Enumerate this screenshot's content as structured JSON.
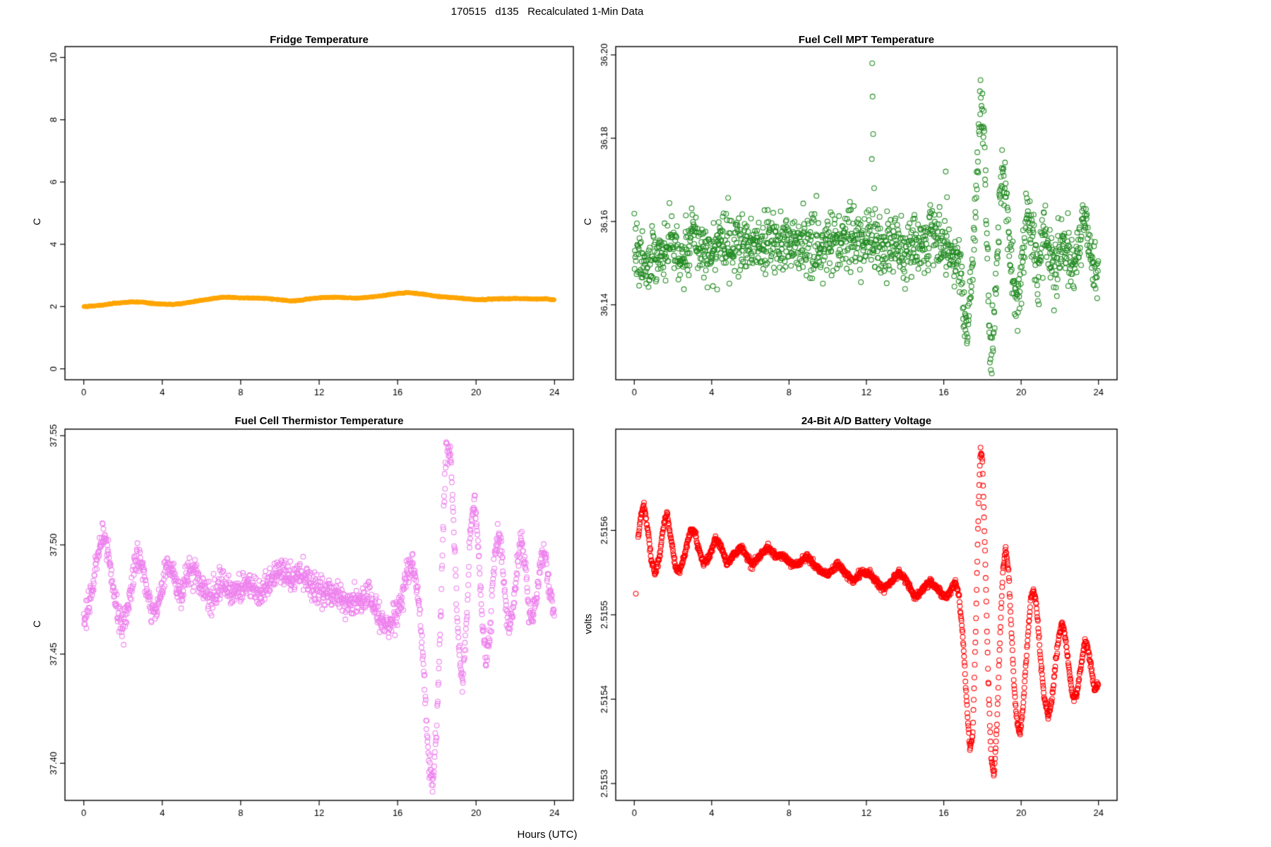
{
  "page": {
    "title": "170515   d135   Recalculated 1-Min Data",
    "xlabel": "Hours (UTC)"
  },
  "chart_data": [
    {
      "type": "scatter",
      "title": "Fridge Temperature",
      "ylabel": "C",
      "xlabel": "",
      "color": "#FFA500",
      "marker": "filled",
      "marker_radius": 3,
      "grid": false,
      "legend": "none",
      "xlim": [
        -0.96,
        24.96
      ],
      "ylim": [
        -0.35,
        10.35
      ],
      "xticks": [
        0,
        4,
        8,
        12,
        16,
        20,
        24
      ],
      "xtick_labels": [
        "0",
        "4",
        "8",
        "12",
        "16",
        "20",
        "24"
      ],
      "yticks": [
        0,
        2,
        4,
        6,
        8,
        10
      ],
      "ytick_labels": [
        "0",
        "2",
        "4",
        "6",
        "8",
        "10"
      ],
      "sample_step": 0.0166667,
      "noise_sd": 0.008,
      "points": [
        [
          0,
          2.0
        ],
        [
          0.5,
          2.02
        ],
        [
          1,
          2.05
        ],
        [
          1.5,
          2.1
        ],
        [
          2,
          2.13
        ],
        [
          2.5,
          2.15
        ],
        [
          3,
          2.14
        ],
        [
          3.5,
          2.1
        ],
        [
          4,
          2.08
        ],
        [
          4.5,
          2.07
        ],
        [
          5,
          2.1
        ],
        [
          5.5,
          2.15
        ],
        [
          6,
          2.2
        ],
        [
          6.5,
          2.25
        ],
        [
          7,
          2.3
        ],
        [
          7.5,
          2.3
        ],
        [
          8,
          2.28
        ],
        [
          8.5,
          2.28
        ],
        [
          9,
          2.27
        ],
        [
          9.5,
          2.25
        ],
        [
          10,
          2.22
        ],
        [
          10.5,
          2.18
        ],
        [
          11,
          2.2
        ],
        [
          11.5,
          2.25
        ],
        [
          12,
          2.28
        ],
        [
          12.5,
          2.3
        ],
        [
          13,
          2.3
        ],
        [
          13.5,
          2.28
        ],
        [
          14,
          2.27
        ],
        [
          14.5,
          2.3
        ],
        [
          15,
          2.33
        ],
        [
          15.5,
          2.38
        ],
        [
          16,
          2.42
        ],
        [
          16.5,
          2.45
        ],
        [
          17,
          2.42
        ],
        [
          17.5,
          2.38
        ],
        [
          18,
          2.33
        ],
        [
          18.5,
          2.3
        ],
        [
          19,
          2.28
        ],
        [
          19.5,
          2.25
        ],
        [
          20,
          2.22
        ],
        [
          20.5,
          2.23
        ],
        [
          21,
          2.25
        ],
        [
          21.5,
          2.25
        ],
        [
          22,
          2.26
        ],
        [
          22.5,
          2.25
        ],
        [
          23,
          2.24
        ],
        [
          23.5,
          2.25
        ],
        [
          24,
          2.22
        ]
      ],
      "outliers": []
    },
    {
      "type": "scatter",
      "title": "Fuel Cell MPT Temperature",
      "ylabel": "C",
      "xlabel": "",
      "color": "#228B22",
      "marker": "open",
      "marker_radius": 3.4,
      "grid": false,
      "legend": "none",
      "xlim": [
        -0.96,
        24.96
      ],
      "ylim": [
        36.122,
        36.202
      ],
      "xticks": [
        0,
        4,
        8,
        12,
        16,
        20,
        24
      ],
      "xtick_labels": [
        "0",
        "4",
        "8",
        "12",
        "16",
        "20",
        "24"
      ],
      "yticks": [
        36.14,
        36.16,
        36.18,
        36.2
      ],
      "ytick_labels": [
        "36.14",
        "36.16",
        "36.18",
        "36.20"
      ],
      "sample_step": 0.0166667,
      "noise_sd": 0.0035,
      "points": [
        [
          0,
          36.155
        ],
        [
          0.3,
          36.15
        ],
        [
          0.6,
          36.148
        ],
        [
          1,
          36.154
        ],
        [
          1.5,
          36.152
        ],
        [
          2,
          36.155
        ],
        [
          2.5,
          36.15
        ],
        [
          3,
          36.156
        ],
        [
          3.5,
          36.152
        ],
        [
          4,
          36.154
        ],
        [
          5,
          36.155
        ],
        [
          6,
          36.154
        ],
        [
          7,
          36.155
        ],
        [
          8,
          36.156
        ],
        [
          9,
          36.154
        ],
        [
          10,
          36.155
        ],
        [
          11,
          36.155
        ],
        [
          12,
          36.156
        ],
        [
          12.6,
          36.155
        ],
        [
          13,
          36.154
        ],
        [
          13.5,
          36.155
        ],
        [
          14,
          36.153
        ],
        [
          14.5,
          36.155
        ],
        [
          15,
          36.154
        ],
        [
          15.5,
          36.156
        ],
        [
          16,
          36.155
        ],
        [
          16.4,
          36.153
        ],
        [
          16.8,
          36.15
        ],
        [
          17,
          36.142
        ],
        [
          17.2,
          36.134
        ],
        [
          17.4,
          36.145
        ],
        [
          17.6,
          36.16
        ],
        [
          17.9,
          36.188
        ],
        [
          18.1,
          36.178
        ],
        [
          18.4,
          36.128
        ],
        [
          18.6,
          36.136
        ],
        [
          18.8,
          36.155
        ],
        [
          19,
          36.172
        ],
        [
          19.2,
          36.165
        ],
        [
          19.5,
          36.15
        ],
        [
          19.8,
          36.14
        ],
        [
          20.1,
          36.152
        ],
        [
          20.3,
          36.165
        ],
        [
          20.6,
          36.155
        ],
        [
          20.9,
          36.145
        ],
        [
          21.2,
          36.158
        ],
        [
          21.5,
          36.15
        ],
        [
          21.8,
          36.146
        ],
        [
          22.1,
          36.157
        ],
        [
          22.4,
          36.152
        ],
        [
          22.7,
          36.147
        ],
        [
          23,
          36.154
        ],
        [
          23.3,
          36.16
        ],
        [
          23.6,
          36.152
        ],
        [
          23.9,
          36.147
        ],
        [
          24,
          36.148
        ]
      ],
      "outliers": [
        [
          12.28,
          36.175
        ],
        [
          12.3,
          36.198
        ],
        [
          12.32,
          36.19
        ],
        [
          12.35,
          36.181
        ],
        [
          12.4,
          36.168
        ],
        [
          12.45,
          36.163
        ],
        [
          16.1,
          36.172
        ]
      ]
    },
    {
      "type": "scatter",
      "title": "Fuel Cell Thermistor Temperature",
      "ylabel": "C",
      "xlabel": "",
      "color": "#EE82EE",
      "marker": "open",
      "marker_radius": 3.4,
      "grid": false,
      "legend": "none",
      "xlim": [
        -0.96,
        24.96
      ],
      "ylim": [
        37.383,
        37.553
      ],
      "xticks": [
        0,
        4,
        8,
        12,
        16,
        20,
        24
      ],
      "xtick_labels": [
        "0",
        "4",
        "8",
        "12",
        "16",
        "20",
        "24"
      ],
      "yticks": [
        37.4,
        37.45,
        37.5,
        37.55
      ],
      "ytick_labels": [
        "37.40",
        "37.45",
        "37.50",
        "37.55"
      ],
      "sample_step": 0.0166667,
      "noise_sd": 0.003,
      "points": [
        [
          0,
          37.468
        ],
        [
          0.25,
          37.472
        ],
        [
          0.5,
          37.483
        ],
        [
          0.75,
          37.497
        ],
        [
          1,
          37.506
        ],
        [
          1.25,
          37.497
        ],
        [
          1.5,
          37.48
        ],
        [
          1.75,
          37.468
        ],
        [
          2,
          37.463
        ],
        [
          2.25,
          37.472
        ],
        [
          2.5,
          37.485
        ],
        [
          2.75,
          37.496
        ],
        [
          3,
          37.49
        ],
        [
          3.25,
          37.478
        ],
        [
          3.5,
          37.468
        ],
        [
          3.75,
          37.47
        ],
        [
          4,
          37.48
        ],
        [
          4.25,
          37.492
        ],
        [
          4.5,
          37.49
        ],
        [
          4.75,
          37.481
        ],
        [
          5,
          37.478
        ],
        [
          5.25,
          37.485
        ],
        [
          5.5,
          37.49
        ],
        [
          5.75,
          37.487
        ],
        [
          6,
          37.48
        ],
        [
          6.5,
          37.475
        ],
        [
          7,
          37.482
        ],
        [
          7.5,
          37.479
        ],
        [
          8,
          37.481
        ],
        [
          8.5,
          37.48
        ],
        [
          9,
          37.478
        ],
        [
          9.5,
          37.484
        ],
        [
          10,
          37.488
        ],
        [
          10.5,
          37.484
        ],
        [
          11,
          37.487
        ],
        [
          11.5,
          37.483
        ],
        [
          12,
          37.478
        ],
        [
          12.5,
          37.478
        ],
        [
          13,
          37.476
        ],
        [
          13.5,
          37.472
        ],
        [
          14,
          37.475
        ],
        [
          14.5,
          37.477
        ],
        [
          15,
          37.468
        ],
        [
          15.5,
          37.462
        ],
        [
          16,
          37.47
        ],
        [
          16.25,
          37.478
        ],
        [
          16.5,
          37.488
        ],
        [
          16.75,
          37.492
        ],
        [
          17,
          37.48
        ],
        [
          17.2,
          37.462
        ],
        [
          17.4,
          37.432
        ],
        [
          17.6,
          37.398
        ],
        [
          17.8,
          37.391
        ],
        [
          18,
          37.42
        ],
        [
          18.2,
          37.47
        ],
        [
          18.4,
          37.53
        ],
        [
          18.5,
          37.547
        ],
        [
          18.7,
          37.54
        ],
        [
          18.9,
          37.5
        ],
        [
          19.1,
          37.455
        ],
        [
          19.3,
          37.435
        ],
        [
          19.5,
          37.46
        ],
        [
          19.7,
          37.505
        ],
        [
          19.9,
          37.522
        ],
        [
          20.1,
          37.5
        ],
        [
          20.3,
          37.468
        ],
        [
          20.5,
          37.445
        ],
        [
          20.7,
          37.46
        ],
        [
          20.9,
          37.49
        ],
        [
          21.1,
          37.507
        ],
        [
          21.3,
          37.498
        ],
        [
          21.5,
          37.475
        ],
        [
          21.7,
          37.46
        ],
        [
          21.9,
          37.472
        ],
        [
          22.1,
          37.492
        ],
        [
          22.3,
          37.502
        ],
        [
          22.5,
          37.49
        ],
        [
          22.7,
          37.47
        ],
        [
          22.9,
          37.465
        ],
        [
          23.1,
          37.478
        ],
        [
          23.3,
          37.492
        ],
        [
          23.5,
          37.495
        ],
        [
          23.7,
          37.483
        ],
        [
          23.9,
          37.47
        ],
        [
          24,
          37.468
        ]
      ],
      "outliers": []
    },
    {
      "type": "scatter",
      "title": "24-Bit A/D Battery Voltage",
      "ylabel": "volts",
      "xlabel": "",
      "color": "#FF0000",
      "marker": "open",
      "marker_radius": 3.4,
      "grid": false,
      "legend": "none",
      "xlim": [
        -0.96,
        24.96
      ],
      "ylim": [
        2.51528,
        2.51572
      ],
      "xticks": [
        0,
        4,
        8,
        12,
        16,
        20,
        24
      ],
      "xtick_labels": [
        "0",
        "4",
        "8",
        "12",
        "16",
        "20",
        "24"
      ],
      "yticks": [
        2.5153,
        2.5154,
        2.5155,
        2.5156
      ],
      "ytick_labels": [
        "2.5153",
        "2.5154",
        "2.5155",
        "2.5156"
      ],
      "sample_step": 0.0166667,
      "noise_sd": 2e-06,
      "points": [
        [
          0.2,
          2.51559
        ],
        [
          0.35,
          2.51562
        ],
        [
          0.5,
          2.51563
        ],
        [
          0.7,
          2.5156
        ],
        [
          0.9,
          2.51556
        ],
        [
          1.1,
          2.51555
        ],
        [
          1.3,
          2.51557
        ],
        [
          1.55,
          2.51561
        ],
        [
          1.7,
          2.51562
        ],
        [
          1.9,
          2.51559
        ],
        [
          2.1,
          2.51556
        ],
        [
          2.3,
          2.51555
        ],
        [
          2.6,
          2.51557
        ],
        [
          2.9,
          2.5156
        ],
        [
          3.1,
          2.5156
        ],
        [
          3.3,
          2.51558
        ],
        [
          3.6,
          2.51556
        ],
        [
          3.9,
          2.51557
        ],
        [
          4.2,
          2.51559
        ],
        [
          4.5,
          2.51558
        ],
        [
          4.8,
          2.51556
        ],
        [
          5.1,
          2.51557
        ],
        [
          5.5,
          2.51558
        ],
        [
          5.8,
          2.51557
        ],
        [
          6.1,
          2.51556
        ],
        [
          6.5,
          2.51557
        ],
        [
          6.9,
          2.51558
        ],
        [
          7.3,
          2.51557
        ],
        [
          7.7,
          2.51557
        ],
        [
          8.1,
          2.51556
        ],
        [
          8.5,
          2.51556
        ],
        [
          8.9,
          2.51557
        ],
        [
          9.3,
          2.51556
        ],
        [
          9.7,
          2.51555
        ],
        [
          10.1,
          2.51555
        ],
        [
          10.5,
          2.51556
        ],
        [
          10.9,
          2.51555
        ],
        [
          11.3,
          2.51554
        ],
        [
          11.7,
          2.51555
        ],
        [
          12.1,
          2.51555
        ],
        [
          12.5,
          2.51554
        ],
        [
          12.9,
          2.51553
        ],
        [
          13.3,
          2.51554
        ],
        [
          13.7,
          2.51555
        ],
        [
          14.1,
          2.51554
        ],
        [
          14.5,
          2.51552
        ],
        [
          14.9,
          2.51553
        ],
        [
          15.3,
          2.51554
        ],
        [
          15.7,
          2.51553
        ],
        [
          16.1,
          2.51552
        ],
        [
          16.4,
          2.51553
        ],
        [
          16.6,
          2.51554
        ],
        [
          16.8,
          2.51552
        ],
        [
          17,
          2.51547
        ],
        [
          17.2,
          2.51539
        ],
        [
          17.35,
          2.51534
        ],
        [
          17.5,
          2.51536
        ],
        [
          17.65,
          2.51548
        ],
        [
          17.8,
          2.51563
        ],
        [
          17.9,
          2.5157
        ],
        [
          18,
          2.51568
        ],
        [
          18.15,
          2.51556
        ],
        [
          18.3,
          2.51542
        ],
        [
          18.45,
          2.51533
        ],
        [
          18.6,
          2.51531
        ],
        [
          18.75,
          2.51537
        ],
        [
          18.9,
          2.51547
        ],
        [
          19.05,
          2.51555
        ],
        [
          19.2,
          2.51558
        ],
        [
          19.35,
          2.51555
        ],
        [
          19.5,
          2.51548
        ],
        [
          19.65,
          2.51541
        ],
        [
          19.8,
          2.51537
        ],
        [
          19.95,
          2.51536
        ],
        [
          20.1,
          2.51539
        ],
        [
          20.3,
          2.51546
        ],
        [
          20.5,
          2.51552
        ],
        [
          20.65,
          2.51553
        ],
        [
          20.8,
          2.51551
        ],
        [
          21,
          2.51545
        ],
        [
          21.2,
          2.5154
        ],
        [
          21.4,
          2.51538
        ],
        [
          21.6,
          2.5154
        ],
        [
          21.8,
          2.51545
        ],
        [
          22,
          2.51548
        ],
        [
          22.15,
          2.51549
        ],
        [
          22.3,
          2.51547
        ],
        [
          22.5,
          2.51543
        ],
        [
          22.7,
          2.5154
        ],
        [
          22.9,
          2.51541
        ],
        [
          23.1,
          2.51544
        ],
        [
          23.3,
          2.51547
        ],
        [
          23.45,
          2.51546
        ],
        [
          23.6,
          2.51544
        ],
        [
          23.8,
          2.51541
        ],
        [
          24,
          2.51542
        ]
      ],
      "outliers": [
        [
          0.08,
          2.515525
        ]
      ]
    }
  ]
}
